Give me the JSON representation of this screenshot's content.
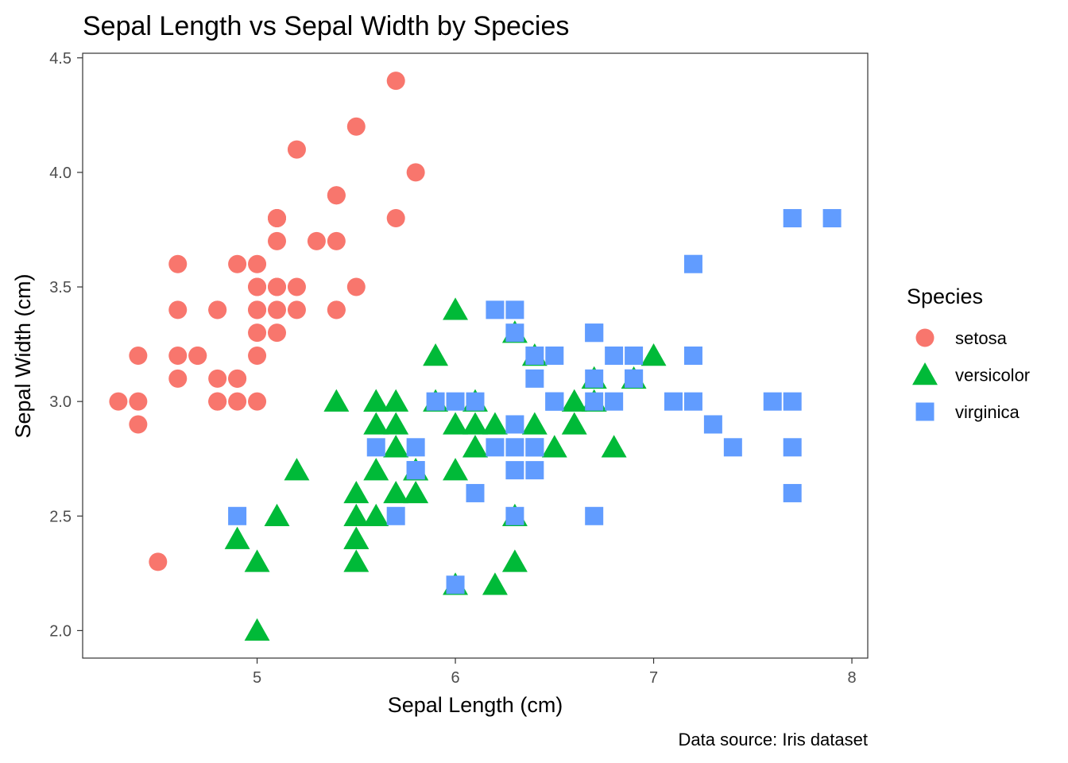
{
  "chart_data": {
    "type": "scatter",
    "title": "Sepal Length vs Sepal Width by Species",
    "xlabel": "Sepal Length (cm)",
    "ylabel": "Sepal Width (cm)",
    "caption": "Data source: Iris dataset",
    "xlim": [
      4.12,
      8.08
    ],
    "ylim": [
      1.88,
      4.52
    ],
    "x_ticks": [
      5,
      6,
      7,
      8
    ],
    "x_tick_labels": [
      "5",
      "6",
      "7",
      "8"
    ],
    "y_ticks": [
      2.0,
      2.5,
      3.0,
      3.5,
      4.0,
      4.5
    ],
    "y_tick_labels": [
      "2.0",
      "2.5",
      "3.0",
      "3.5",
      "4.0",
      "4.5"
    ],
    "grid": false,
    "legend": {
      "title": "Species",
      "position": "right"
    },
    "series": [
      {
        "name": "setosa",
        "shape": "circle",
        "color": "#F8766D",
        "points": [
          [
            5.1,
            3.5
          ],
          [
            4.9,
            3.0
          ],
          [
            4.7,
            3.2
          ],
          [
            4.6,
            3.1
          ],
          [
            5.0,
            3.6
          ],
          [
            5.4,
            3.9
          ],
          [
            4.6,
            3.4
          ],
          [
            5.0,
            3.4
          ],
          [
            4.4,
            2.9
          ],
          [
            4.9,
            3.1
          ],
          [
            5.4,
            3.7
          ],
          [
            4.8,
            3.4
          ],
          [
            4.8,
            3.0
          ],
          [
            4.3,
            3.0
          ],
          [
            5.8,
            4.0
          ],
          [
            5.7,
            4.4
          ],
          [
            5.4,
            3.9
          ],
          [
            5.1,
            3.5
          ],
          [
            5.7,
            3.8
          ],
          [
            5.1,
            3.8
          ],
          [
            5.4,
            3.4
          ],
          [
            5.1,
            3.7
          ],
          [
            4.6,
            3.6
          ],
          [
            5.1,
            3.3
          ],
          [
            4.8,
            3.4
          ],
          [
            5.0,
            3.0
          ],
          [
            5.0,
            3.4
          ],
          [
            5.2,
            3.5
          ],
          [
            5.2,
            3.4
          ],
          [
            4.7,
            3.2
          ],
          [
            4.8,
            3.1
          ],
          [
            5.4,
            3.4
          ],
          [
            5.2,
            4.1
          ],
          [
            5.5,
            4.2
          ],
          [
            4.9,
            3.1
          ],
          [
            5.0,
            3.2
          ],
          [
            5.5,
            3.5
          ],
          [
            4.9,
            3.6
          ],
          [
            4.4,
            3.0
          ],
          [
            5.1,
            3.4
          ],
          [
            5.0,
            3.5
          ],
          [
            4.5,
            2.3
          ],
          [
            4.4,
            3.2
          ],
          [
            5.0,
            3.5
          ],
          [
            5.1,
            3.8
          ],
          [
            4.8,
            3.0
          ],
          [
            5.1,
            3.8
          ],
          [
            4.6,
            3.2
          ],
          [
            5.3,
            3.7
          ],
          [
            5.0,
            3.3
          ]
        ]
      },
      {
        "name": "versicolor",
        "shape": "triangle",
        "color": "#00BA38",
        "points": [
          [
            7.0,
            3.2
          ],
          [
            6.4,
            3.2
          ],
          [
            6.9,
            3.1
          ],
          [
            5.5,
            2.3
          ],
          [
            6.5,
            2.8
          ],
          [
            5.7,
            2.8
          ],
          [
            6.3,
            3.3
          ],
          [
            4.9,
            2.4
          ],
          [
            6.6,
            2.9
          ],
          [
            5.2,
            2.7
          ],
          [
            5.0,
            2.0
          ],
          [
            5.9,
            3.0
          ],
          [
            6.0,
            2.2
          ],
          [
            6.1,
            2.9
          ],
          [
            5.6,
            2.9
          ],
          [
            6.7,
            3.1
          ],
          [
            5.6,
            3.0
          ],
          [
            5.8,
            2.7
          ],
          [
            6.2,
            2.2
          ],
          [
            5.6,
            2.5
          ],
          [
            5.9,
            3.2
          ],
          [
            6.1,
            2.8
          ],
          [
            6.3,
            2.5
          ],
          [
            6.1,
            2.8
          ],
          [
            6.4,
            2.9
          ],
          [
            6.6,
            3.0
          ],
          [
            6.8,
            2.8
          ],
          [
            6.7,
            3.0
          ],
          [
            6.0,
            2.9
          ],
          [
            5.7,
            2.6
          ],
          [
            5.5,
            2.4
          ],
          [
            5.5,
            2.4
          ],
          [
            5.8,
            2.7
          ],
          [
            6.0,
            2.7
          ],
          [
            5.4,
            3.0
          ],
          [
            6.0,
            3.4
          ],
          [
            6.7,
            3.1
          ],
          [
            6.3,
            2.3
          ],
          [
            5.6,
            3.0
          ],
          [
            5.5,
            2.5
          ],
          [
            5.5,
            2.6
          ],
          [
            6.1,
            3.0
          ],
          [
            5.8,
            2.6
          ],
          [
            5.0,
            2.3
          ],
          [
            5.6,
            2.7
          ],
          [
            5.7,
            3.0
          ],
          [
            5.7,
            2.9
          ],
          [
            6.2,
            2.9
          ],
          [
            5.1,
            2.5
          ],
          [
            5.7,
            2.8
          ]
        ]
      },
      {
        "name": "virginica",
        "shape": "square",
        "color": "#619CFF",
        "points": [
          [
            6.3,
            3.3
          ],
          [
            5.8,
            2.7
          ],
          [
            7.1,
            3.0
          ],
          [
            6.3,
            2.9
          ],
          [
            6.5,
            3.0
          ],
          [
            7.6,
            3.0
          ],
          [
            4.9,
            2.5
          ],
          [
            7.3,
            2.9
          ],
          [
            6.7,
            2.5
          ],
          [
            7.2,
            3.6
          ],
          [
            6.5,
            3.2
          ],
          [
            6.4,
            2.7
          ],
          [
            6.8,
            3.0
          ],
          [
            5.7,
            2.5
          ],
          [
            5.8,
            2.8
          ],
          [
            6.4,
            3.2
          ],
          [
            6.5,
            3.0
          ],
          [
            7.7,
            3.8
          ],
          [
            7.7,
            2.6
          ],
          [
            6.0,
            2.2
          ],
          [
            6.9,
            3.2
          ],
          [
            5.6,
            2.8
          ],
          [
            7.7,
            2.8
          ],
          [
            6.3,
            2.7
          ],
          [
            6.7,
            3.3
          ],
          [
            7.2,
            3.2
          ],
          [
            6.2,
            2.8
          ],
          [
            6.1,
            3.0
          ],
          [
            6.4,
            2.8
          ],
          [
            7.2,
            3.0
          ],
          [
            7.4,
            2.8
          ],
          [
            7.9,
            3.8
          ],
          [
            6.4,
            2.8
          ],
          [
            6.3,
            2.8
          ],
          [
            6.1,
            2.6
          ],
          [
            7.7,
            3.0
          ],
          [
            6.3,
            3.4
          ],
          [
            6.4,
            3.1
          ],
          [
            6.0,
            3.0
          ],
          [
            6.9,
            3.1
          ],
          [
            6.7,
            3.1
          ],
          [
            6.9,
            3.1
          ],
          [
            5.8,
            2.7
          ],
          [
            6.8,
            3.2
          ],
          [
            6.7,
            3.3
          ],
          [
            6.7,
            3.0
          ],
          [
            6.3,
            2.5
          ],
          [
            6.5,
            3.0
          ],
          [
            6.2,
            3.4
          ],
          [
            5.9,
            3.0
          ]
        ]
      }
    ]
  }
}
